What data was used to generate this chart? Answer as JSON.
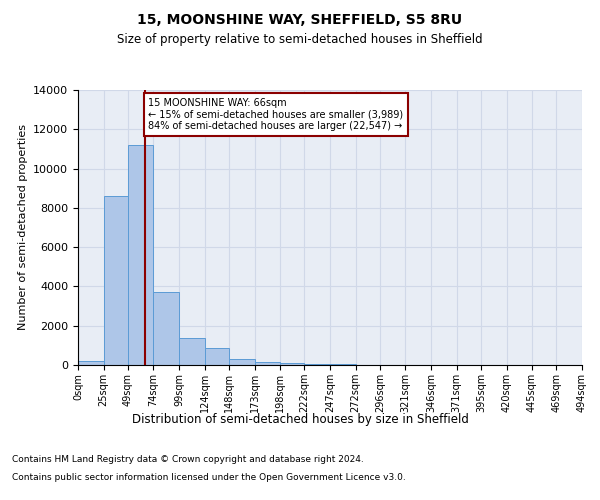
{
  "title": "15, MOONSHINE WAY, SHEFFIELD, S5 8RU",
  "subtitle": "Size of property relative to semi-detached houses in Sheffield",
  "xlabel": "Distribution of semi-detached houses by size in Sheffield",
  "ylabel": "Number of semi-detached properties",
  "property_size": 66,
  "annotation_text_line1": "15 MOONSHINE WAY: 66sqm",
  "annotation_text_line2": "← 15% of semi-detached houses are smaller (3,989)",
  "annotation_text_line3": "84% of semi-detached houses are larger (22,547) →",
  "bins": [
    0,
    25,
    49,
    74,
    99,
    124,
    148,
    173,
    198,
    222,
    247,
    272,
    296,
    321,
    346,
    371,
    395,
    420,
    445,
    469,
    494
  ],
  "counts": [
    200,
    8600,
    11200,
    3700,
    1400,
    850,
    300,
    130,
    90,
    50,
    30,
    15,
    10,
    5,
    3,
    2,
    1,
    1,
    0,
    0
  ],
  "bar_color": "#aec6e8",
  "bar_edge_color": "#5b9bd5",
  "line_color": "#8b0000",
  "annotation_box_color": "#ffffff",
  "annotation_box_edge": "#8b0000",
  "grid_color": "#d0d8e8",
  "background_color": "#e8edf5",
  "ylim": [
    0,
    14000
  ],
  "yticks": [
    0,
    2000,
    4000,
    6000,
    8000,
    10000,
    12000,
    14000
  ],
  "footer_line1": "Contains HM Land Registry data © Crown copyright and database right 2024.",
  "footer_line2": "Contains public sector information licensed under the Open Government Licence v3.0."
}
